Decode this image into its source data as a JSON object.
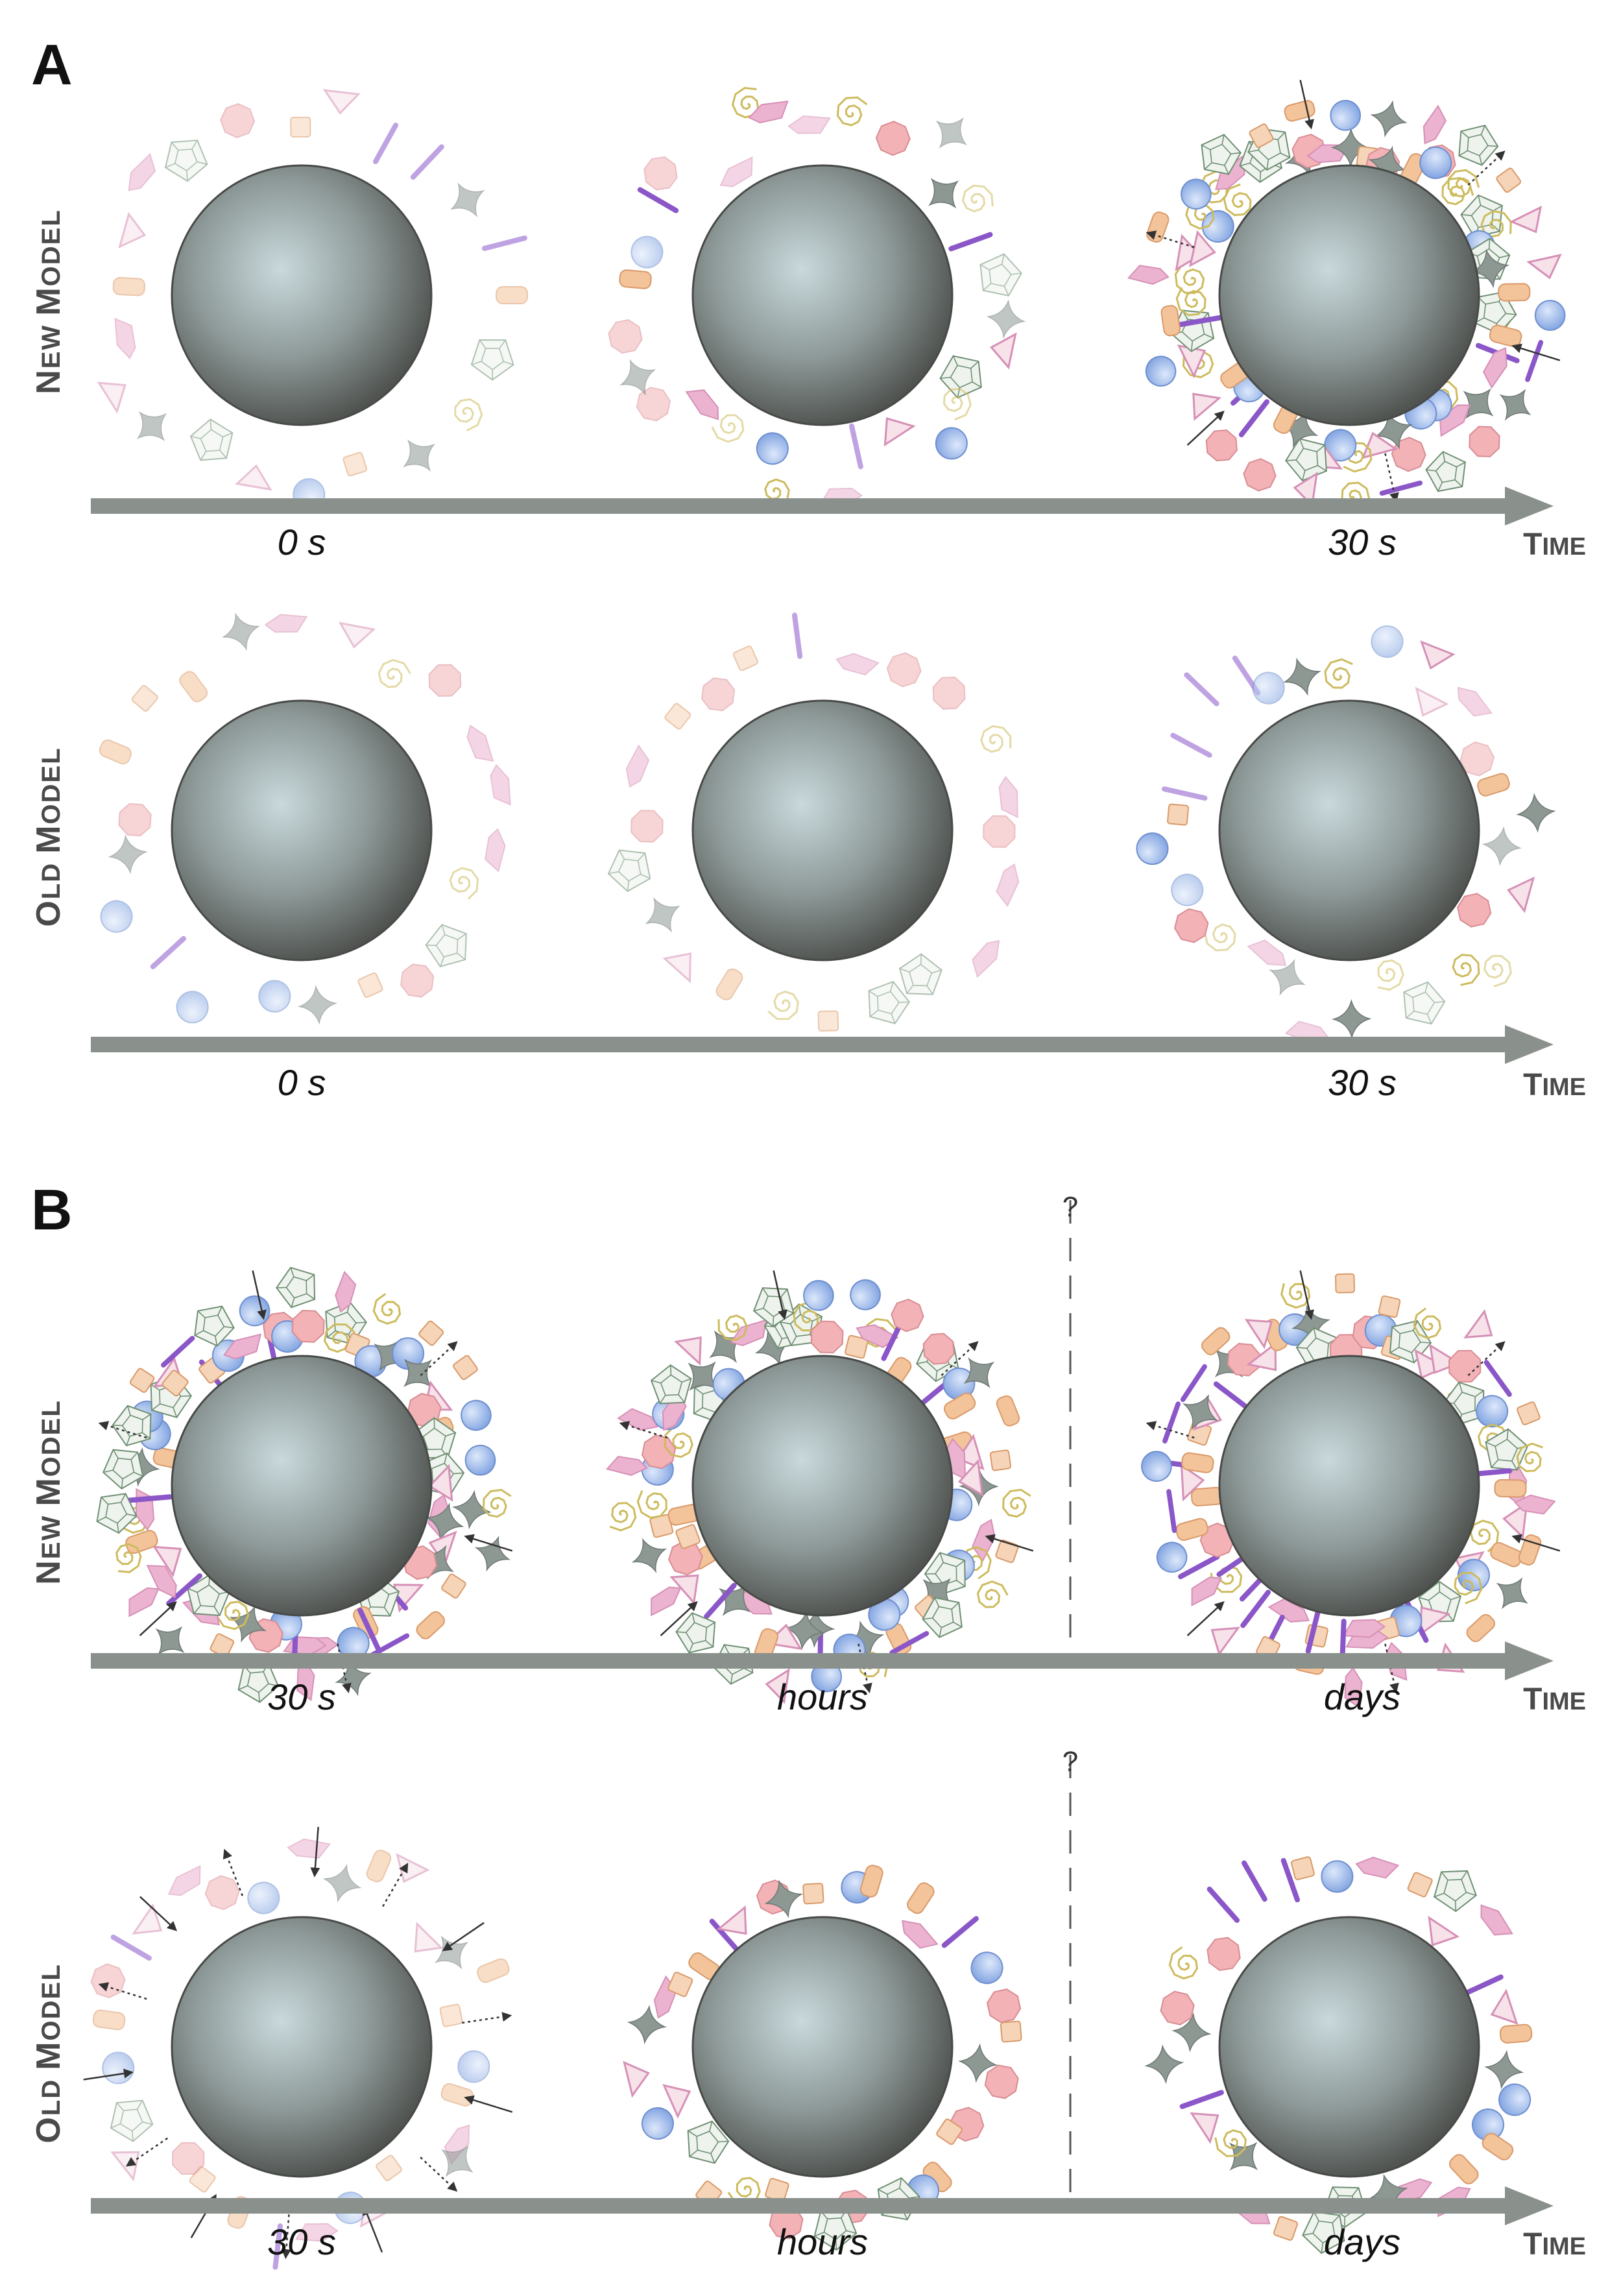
{
  "figure": {
    "panels": [
      {
        "letter": "A",
        "rows": [
          {
            "label_initial": "N",
            "label_rest": "EW ",
            "label_initial2": "M",
            "label_rest2": "ODEL",
            "time_labels": [
              "0 s",
              "",
              "30 s"
            ],
            "axis_end_initial": "T",
            "axis_end_rest": "IME",
            "states": [
              "sparse",
              "partial",
              "dense"
            ]
          },
          {
            "label_initial": "O",
            "label_rest": "LD ",
            "label_initial2": "M",
            "label_rest2": "ODEL",
            "time_labels": [
              "0 s",
              "",
              "30 s"
            ],
            "axis_end_initial": "T",
            "axis_end_rest": "IME",
            "states": [
              "sparse",
              "sparse",
              "partial"
            ]
          }
        ]
      },
      {
        "letter": "B",
        "rows": [
          {
            "label_initial": "N",
            "label_rest": "EW ",
            "label_initial2": "M",
            "label_rest2": "ODEL",
            "time_labels": [
              "30 s",
              "hours",
              "days"
            ],
            "axis_end_initial": "T",
            "axis_end_rest": "IME",
            "states": [
              "dense",
              "dense",
              "dense"
            ],
            "divider_mark": "?"
          },
          {
            "label_initial": "O",
            "label_rest": "LD ",
            "label_initial2": "M",
            "label_rest2": "ODEL",
            "time_labels": [
              "30 s",
              "hours",
              "days"
            ],
            "axis_end_initial": "T",
            "axis_end_rest": "IME",
            "states": [
              "exchange",
              "settled",
              "settled"
            ],
            "divider_mark": "?"
          }
        ]
      }
    ],
    "colors": {
      "sphere_dark": "#4f524f",
      "sphere_light": "#c9d9dc",
      "axis": "#8a918d",
      "blue_ball": "#8fb0e6",
      "pink_hex": "#f2b2b6",
      "orange_rect": "#f3c39a",
      "purple_stick": "#8a56c8",
      "green_pentagon": "#6f8f73",
      "gray_star": "#8d9893",
      "yellow_spiral": "#cdbb5e",
      "pink_rhomb": "#ecb3d0"
    }
  }
}
